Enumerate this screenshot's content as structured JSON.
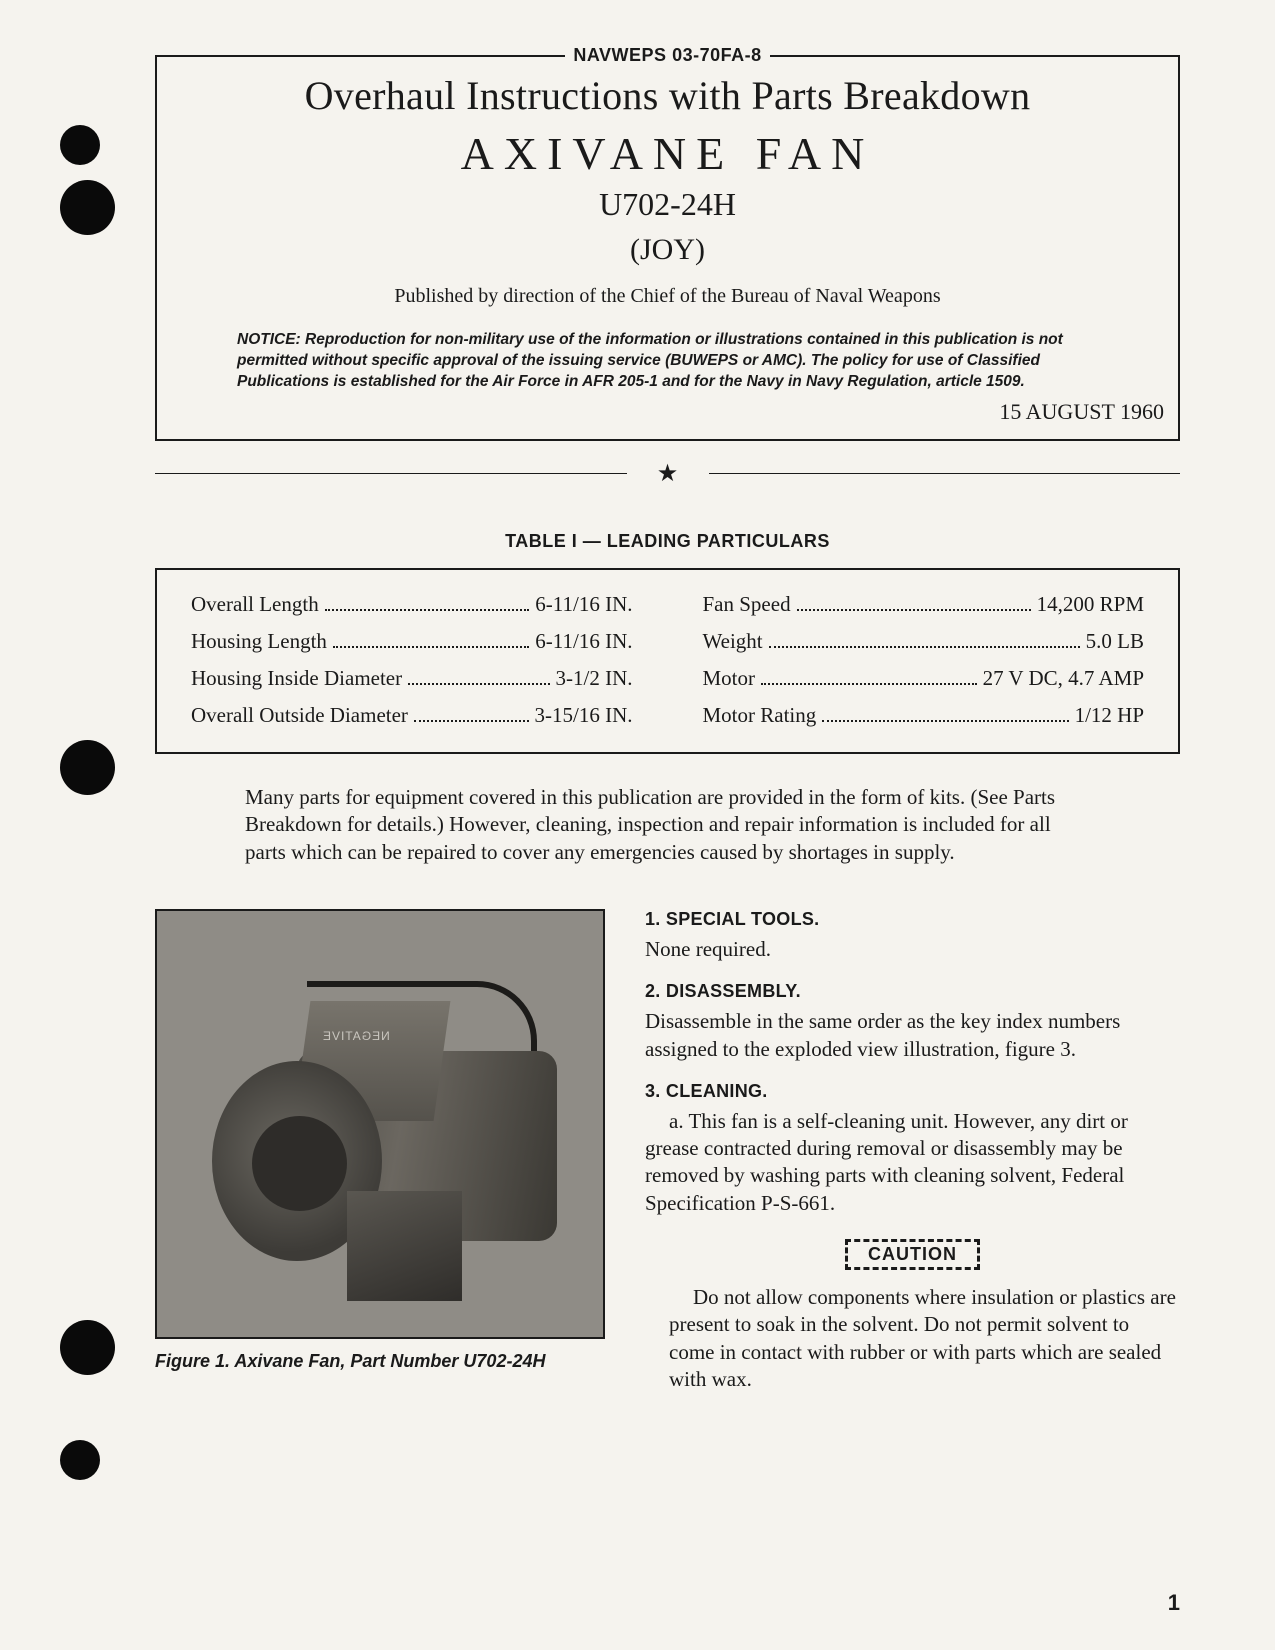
{
  "doc_id": "NAVWEPS 03-70FA-8",
  "title": "Overhaul Instructions with Parts Breakdown",
  "product": "AXIVANE  FAN",
  "model": "U702-24H",
  "manufacturer": "(JOY)",
  "published_by": "Published by direction of the Chief of the Bureau of Naval Weapons",
  "notice_label": "NOTICE:",
  "notice": " Reproduction for non-military use of the information or illustrations contained in this publication is not permitted without specific approval of the issuing service (BUWEPS or AMC). The policy for use of Classified Publications is established for the Air Force in AFR 205-1 and for the Navy in Navy Regulation, article 1509.",
  "date": "15 AUGUST 1960",
  "table_title": "TABLE I — LEADING PARTICULARS",
  "particulars": {
    "left": [
      {
        "label": "Overall Length",
        "value": "6-11/16 IN."
      },
      {
        "label": "Housing Length",
        "value": "6-11/16 IN."
      },
      {
        "label": "Housing Inside Diameter",
        "value": "3-1/2 IN."
      },
      {
        "label": "Overall Outside Diameter",
        "value": "3-15/16 IN."
      }
    ],
    "right": [
      {
        "label": "Fan Speed",
        "value": "14,200 RPM"
      },
      {
        "label": "Weight",
        "value": "5.0 LB"
      },
      {
        "label": "Motor",
        "value": "27 V DC, 4.7 AMP"
      },
      {
        "label": "Motor Rating",
        "value": "1/12 HP"
      }
    ]
  },
  "intro_para": "Many parts for equipment covered in this publication are provided in the form of kits. (See Parts Breakdown for details.) However, cleaning, inspection and repair information is included for all parts which can be repaired to cover any emergencies caused by shortages in supply.",
  "figure_neg_label": "NEGATIVE",
  "figure_caption": "Figure 1. Axivane Fan, Part Number U702-24H",
  "sections": {
    "s1": {
      "head": "1. SPECIAL TOOLS.",
      "body": "None required."
    },
    "s2": {
      "head": "2. DISASSEMBLY.",
      "body": "Disassemble in the same order as the key index numbers assigned to the exploded view illustration, figure 3."
    },
    "s3": {
      "head": "3. CLEANING.",
      "body": "a. This fan is a self-cleaning unit. However, any dirt or grease contracted during removal or disassembly may be removed by washing parts with cleaning solvent, Federal Specification P-S-661."
    }
  },
  "caution_label": "CAUTION",
  "caution_text": "Do not allow components where insulation or plastics are present to soak in the solvent. Do not permit solvent to come in contact with rubber or with parts which are sealed with wax.",
  "page_number": "1",
  "colors": {
    "paper": "#f5f3ee",
    "ink": "#1a1a1a",
    "photo_bg": "#8f8c86"
  }
}
